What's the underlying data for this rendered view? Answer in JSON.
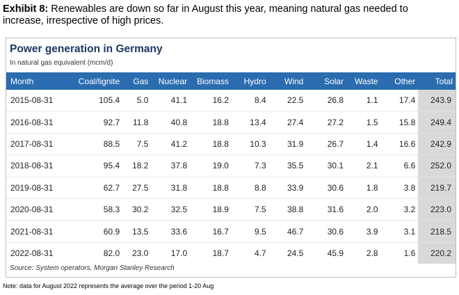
{
  "exhibit": {
    "label": "Exhibit 8:",
    "text": "Renewables are down so far in August this year, meaning natural gas needed to increase, irrespective of high prices."
  },
  "panel": {
    "title": "Power generation in Germany",
    "subtitle": "In natural gas equivalent (mcm/d)",
    "source": "Source: System operators, Morgan Stanley Research"
  },
  "table": {
    "columns": [
      "Month",
      "Coal/lignite",
      "Gas",
      "Nuclear",
      "Biomass",
      "Hydro",
      "Wind",
      "Solar",
      "Waste",
      "Other",
      "Total"
    ],
    "rows": [
      [
        "2015-08-31",
        "105.4",
        "5.0",
        "41.1",
        "16.2",
        "8.4",
        "22.5",
        "26.8",
        "1.1",
        "17.4",
        "243.9"
      ],
      [
        "2016-08-31",
        "92.7",
        "11.8",
        "40.8",
        "18.8",
        "13.4",
        "27.4",
        "27.2",
        "1.5",
        "15.8",
        "249.4"
      ],
      [
        "2017-08-31",
        "88.5",
        "7.5",
        "41.2",
        "18.8",
        "10.3",
        "31.9",
        "26.7",
        "1.4",
        "16.6",
        "242.9"
      ],
      [
        "2018-08-31",
        "95.4",
        "18.2",
        "37.8",
        "19.0",
        "7.3",
        "35.5",
        "30.1",
        "2.1",
        "6.6",
        "252.0"
      ],
      [
        "2019-08-31",
        "62.7",
        "27.5",
        "31.8",
        "18.8",
        "8.8",
        "33.9",
        "30.6",
        "1.8",
        "3.8",
        "219.7"
      ],
      [
        "2020-08-31",
        "58.3",
        "30.2",
        "32.5",
        "18.9",
        "7.5",
        "38.8",
        "31.6",
        "2.0",
        "3.2",
        "223.0"
      ],
      [
        "2021-08-31",
        "60.9",
        "13.5",
        "33.6",
        "16.7",
        "9.5",
        "46.7",
        "30.6",
        "3.9",
        "3.1",
        "218.5"
      ],
      [
        "2022-08-31",
        "82.0",
        "23.0",
        "17.0",
        "18.7",
        "4.7",
        "24.5",
        "45.9",
        "2.8",
        "1.6",
        "220.2"
      ]
    ]
  },
  "note": "Note: data for August 2022 represents the average over the period 1-20 Aug",
  "colors": {
    "header_bg": "#2b6cb0",
    "title": "#1f3864",
    "total_bg": "#d9d9d9"
  }
}
